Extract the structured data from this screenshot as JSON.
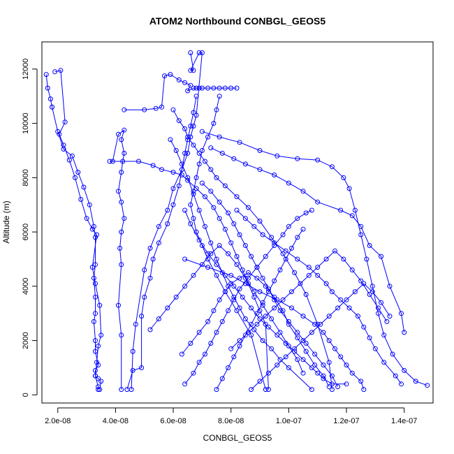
{
  "chart_data": {
    "type": "scatter",
    "title": "ATOM2 Northbound CONBGL_GEOS5",
    "xlabel": "CONBGL_GEOS5",
    "ylabel": "Altitude (m)",
    "xlim": [
      1.45e-08,
      1.5e-07
    ],
    "ylim": [
      -300,
      13000
    ],
    "x_ticks": [
      2e-08,
      4e-08,
      6e-08,
      8e-08,
      1e-07,
      1.2e-07,
      1.4e-07
    ],
    "x_tick_labels": [
      "2.0e-08",
      "4.0e-08",
      "6.0e-08",
      "8.0e-08",
      "1.0e-07",
      "1.2e-07",
      "1.4e-07"
    ],
    "y_ticks": [
      0,
      2000,
      4000,
      6000,
      8000,
      10000,
      12000
    ],
    "y_tick_labels": [
      "0",
      "2000",
      "4000",
      "6000",
      "8000",
      "10000",
      "12000"
    ],
    "marker": "open-circle",
    "connect_points": true,
    "color": "#0000ff",
    "series": [
      {
        "x": [
          1.6e-08,
          1.65e-08,
          1.75e-08,
          1.8e-08,
          1.8e-08,
          2e-08,
          2.2e-08,
          2.5e-08,
          2.7e-08,
          2.9e-08,
          3.1e-08,
          3.25e-08,
          3.3e-08,
          3.3e-08,
          3.25e-08,
          3.3e-08,
          3.3e-08,
          3.25e-08,
          3.3e-08,
          3.3e-08,
          3.4e-08,
          3.3e-08,
          3.3e-08,
          3.4e-08,
          3.4e-08
        ],
        "y": [
          11800,
          11300,
          10900,
          10600,
          10600,
          9700,
          9050,
          8800,
          8200,
          7650,
          7000,
          6200,
          5800,
          4800,
          4300,
          3600,
          3000,
          2700,
          2000,
          1600,
          1100,
          900,
          700,
          300,
          200
        ]
      },
      {
        "x": [
          1.9e-08,
          2.1e-08,
          2.25e-08,
          2.05e-08,
          2.2e-08,
          2.4e-08,
          2.6e-08,
          2.8e-08,
          3e-08,
          3.2e-08,
          3.35e-08,
          3.2e-08,
          3.3e-08,
          3.45e-08,
          3.5e-08,
          3.4e-08,
          3.35e-08,
          3.3e-08,
          3.4e-08,
          3.5e-08,
          3.45e-08
        ],
        "y": [
          11900,
          11950,
          10050,
          9600,
          9200,
          8650,
          8000,
          7200,
          6500,
          6100,
          5900,
          4700,
          4100,
          3300,
          2200,
          1800,
          1200,
          700,
          600,
          500,
          200
        ]
      },
      {
        "x": [
          3.9e-08,
          4.1e-08,
          4.3e-08,
          4.2e-08,
          4.3e-08,
          4.25e-08,
          4.2e-08,
          4.1e-08,
          4.2e-08,
          4.3e-08,
          4.2e-08,
          4.15e-08,
          4.2e-08,
          4.1e-08,
          4.2e-08,
          4.2e-08
        ],
        "y": [
          8600,
          9600,
          9750,
          9400,
          8900,
          8600,
          8200,
          7500,
          7100,
          6500,
          6000,
          5400,
          4800,
          3300,
          2200,
          200
        ]
      },
      {
        "x": [
          4.3e-08,
          5e-08,
          5.4e-08,
          5.6e-08,
          5.7e-08,
          5.9e-08,
          6.2e-08,
          6.4e-08,
          6.6e-08,
          6.5e-08,
          6.7e-08,
          6.9e-08,
          7e-08,
          6.8e-08,
          7.2e-08,
          7.4e-08,
          7.6e-08,
          7.8e-08,
          8e-08,
          8.2e-08
        ],
        "y": [
          10500,
          10500,
          10550,
          10600,
          11750,
          11800,
          11600,
          11500,
          11400,
          11200,
          11300,
          11300,
          11300,
          11300,
          11300,
          11300,
          11300,
          11300,
          11300,
          11300
        ]
      },
      {
        "x": [
          6.6e-08,
          6.7e-08,
          6.6e-08,
          6.9e-08,
          7e-08,
          6.8e-08,
          6.7e-08,
          6.6e-08,
          6.5e-08,
          6.3e-08,
          6e-08,
          5.8e-08,
          5.5e-08,
          5.2e-08,
          5e-08,
          4.7e-08,
          4.6e-08,
          4.55e-08
        ],
        "y": [
          12600,
          11950,
          11950,
          12600,
          12600,
          10300,
          9900,
          9500,
          8900,
          8300,
          7600,
          6800,
          6200,
          5400,
          4600,
          2600,
          1600,
          200
        ]
      },
      {
        "x": [
          3.8e-08,
          4.8e-08,
          5.3e-08,
          5.6e-08,
          6e-08,
          6.3e-08,
          6.5e-08,
          6.8e-08,
          7.1e-08,
          7.4e-08,
          7.6e-08,
          7.8e-08,
          8e-08,
          8.2e-08,
          8.4e-08,
          8.6e-08,
          8.8e-08,
          9e-08,
          9.2e-08,
          9.3e-08
        ],
        "y": [
          8600,
          8600,
          8450,
          8300,
          8200,
          8100,
          7900,
          7600,
          7300,
          6900,
          6500,
          6100,
          5600,
          5100,
          4600,
          4100,
          3600,
          3100,
          2600,
          200
        ]
      },
      {
        "x": [
          6e-08,
          6.2e-08,
          6.4e-08,
          6.5e-08,
          6.7e-08,
          6.9e-08,
          7.1e-08,
          7.3e-08,
          7.5e-08,
          7.8e-08,
          8.2e-08,
          8.6e-08,
          9e-08,
          9.4e-08,
          9.8e-08,
          1.02e-07,
          1.06e-07,
          1.1e-07,
          1.14e-07,
          1.15e-07
        ],
        "y": [
          10500,
          10100,
          9800,
          9500,
          9200,
          8900,
          8600,
          8300,
          8000,
          7700,
          7300,
          6900,
          6400,
          5800,
          5200,
          4500,
          3700,
          2600,
          1200,
          200
        ]
      },
      {
        "x": [
          7.3e-08,
          7.7e-08,
          8.1e-08,
          8.5e-08,
          9e-08,
          9.5e-08,
          1e-07,
          1.05e-07,
          1.1e-07,
          1.18e-07,
          1.22e-07,
          1.25e-07,
          1.28e-07,
          1.32e-07,
          1.35e-07,
          1.39e-07,
          1.4e-07
        ],
        "y": [
          9100,
          8900,
          8700,
          8500,
          8300,
          8100,
          7800,
          7500,
          7100,
          6800,
          6600,
          6200,
          5500,
          5100,
          4000,
          3000,
          2300
        ]
      },
      {
        "x": [
          7e-08,
          7.6e-08,
          8.3e-08,
          9e-08,
          9.6e-08,
          1.03e-07,
          1.1e-07,
          1.15e-07,
          1.19e-07,
          1.21e-07,
          1.23e-07,
          1.25e-07,
          1.27e-07,
          1.29e-07,
          1.31e-07,
          1.33e-07,
          1.36e-07,
          1.4e-07,
          1.44e-07,
          1.48e-07
        ],
        "y": [
          9700,
          9500,
          9300,
          9000,
          8800,
          8700,
          8650,
          8400,
          8000,
          7600,
          6800,
          5900,
          5000,
          4000,
          3000,
          2200,
          1500,
          900,
          500,
          350
        ]
      },
      {
        "x": [
          6.4e-08,
          6.6e-08,
          6.9e-08,
          7.2e-08,
          7.5e-08,
          7.8e-08,
          8.1e-08,
          8.4e-08,
          8.7e-08,
          9e-08,
          9.3e-08,
          9.6e-08,
          9.9e-08,
          1.02e-07,
          1.05e-07,
          1.08e-07,
          1.1e-07,
          1.12e-07,
          1.15e-07,
          1.2e-07
        ],
        "y": [
          6800,
          6300,
          5700,
          5200,
          4800,
          4400,
          4000,
          3600,
          3200,
          2800,
          2500,
          2200,
          1900,
          1600,
          1300,
          1000,
          800,
          600,
          400,
          400
        ]
      },
      {
        "x": [
          5.9e-08,
          6.1e-08,
          6.3e-08,
          6.5e-08,
          6.7e-08,
          6.9e-08,
          7.1e-08,
          7.3e-08,
          7.5e-08,
          7.7e-08,
          7.9e-08,
          8.1e-08,
          8.3e-08,
          8.5e-08,
          8.8e-08,
          9.1e-08,
          9.4e-08,
          9.7e-08,
          1e-07,
          1.08e-07
        ],
        "y": [
          9400,
          9000,
          8500,
          8000,
          7400,
          6800,
          6200,
          5600,
          5000,
          4500,
          4000,
          3600,
          3200,
          2800,
          2400,
          2000,
          1700,
          1300,
          1000,
          200
        ]
      },
      {
        "x": [
          6.8e-08,
          6.7e-08,
          6.6e-08,
          6.5e-08,
          6.4e-08,
          6.3e-08,
          6.2e-08,
          6e-08,
          5.8e-08,
          5.5e-08,
          5.3e-08,
          5.2e-08,
          5e-08,
          4.9e-08,
          4.9e-08,
          4.6e-08,
          4.4e-08
        ],
        "y": [
          11000,
          10400,
          9900,
          9400,
          8900,
          8300,
          7700,
          7000,
          6300,
          5600,
          5000,
          4300,
          3600,
          2900,
          1000,
          900,
          200
        ]
      },
      {
        "x": [
          7.6e-08,
          7.5e-08,
          7.4e-08,
          7.2e-08,
          7e-08,
          6.9e-08,
          6.8e-08,
          6.7e-08,
          6.6e-08,
          6.7e-08,
          6.8e-08,
          7e-08,
          7.2e-08,
          7.5e-08,
          7.8e-08,
          8.2e-08,
          8.7e-08,
          9.2e-08
        ],
        "y": [
          11000,
          10500,
          10000,
          9500,
          9000,
          8500,
          8000,
          7500,
          7000,
          6500,
          6000,
          5500,
          5000,
          4400,
          3800,
          3100,
          2200,
          200
        ]
      },
      {
        "x": [
          6.4e-08,
          7.2e-08,
          8e-08,
          8.5e-08,
          9e-08,
          9.6e-08,
          1.01e-07,
          1.05e-07,
          1.09e-07,
          1.12e-07,
          1.14e-07,
          1.16e-07,
          1.18e-07,
          1.2e-07,
          1.22e-07,
          1.25e-07,
          1.26e-07
        ],
        "y": [
          5000,
          4700,
          4400,
          4100,
          3800,
          3500,
          3200,
          2900,
          2600,
          2300,
          2000,
          1700,
          1400,
          1100,
          800,
          500,
          200
        ]
      },
      {
        "x": [
          8.2e-08,
          8.5e-08,
          8.8e-08,
          9.1e-08,
          9.5e-08,
          9.9e-08,
          1.03e-07,
          1.07e-07,
          1.1e-07,
          1.13e-07,
          1.15e-07,
          1.18e-07,
          1.21e-07,
          1.24e-07,
          1.26e-07,
          1.28e-07,
          1.3e-07,
          1.33e-07,
          1.37e-07,
          1.39e-07
        ],
        "y": [
          6800,
          6500,
          6200,
          5900,
          5600,
          5300,
          5000,
          4700,
          4400,
          4100,
          3800,
          3500,
          3200,
          2900,
          2500,
          2100,
          1700,
          1200,
          700,
          400
        ]
      },
      {
        "x": [
          6.3e-08,
          6.6e-08,
          6.9e-08,
          7.2e-08,
          7.4e-08,
          7.6e-08,
          7.8e-08,
          8e-08,
          8.3e-08,
          8.6e-08,
          8.9e-08,
          9.2e-08,
          9.5e-08,
          9.8e-08,
          1e-07,
          1.03e-07,
          1.06e-07,
          1.09e-07,
          1.12e-07,
          1.14e-07
        ],
        "y": [
          1500,
          1900,
          2300,
          2700,
          3100,
          3500,
          3800,
          4100,
          4300,
          4500,
          4300,
          4000,
          3600,
          3100,
          2600,
          2100,
          1600,
          1100,
          700,
          300
        ]
      },
      {
        "x": [
          6.4e-08,
          6.7e-08,
          6.9e-08,
          7.1e-08,
          7.3e-08,
          7.5e-08,
          7.7e-08,
          7.9e-08,
          8.1e-08,
          8.3e-08,
          8.6e-08,
          8.9e-08,
          9.2e-08,
          9.5e-08,
          9.8e-08,
          1e-07,
          1.03e-07,
          1.06e-07,
          1.08e-07
        ],
        "y": [
          400,
          800,
          1200,
          1500,
          1900,
          2300,
          2700,
          3100,
          3500,
          3900,
          4300,
          4700,
          5100,
          5500,
          5900,
          6200,
          6500,
          6700,
          6800
        ]
      },
      {
        "x": [
          7e-08,
          7.3e-08,
          7.6e-08,
          7.9e-08,
          8.1e-08,
          8.3e-08,
          8.5e-08,
          8.7e-08,
          8.9e-08,
          9.1e-08,
          9.3e-08,
          9.5e-08,
          9.7e-08,
          1e-07,
          1.03e-07,
          1.06e-07,
          1.09e-07,
          1.12e-07,
          1.15e-07,
          1.17e-07
        ],
        "y": [
          7800,
          7500,
          7100,
          6700,
          6300,
          5900,
          5500,
          5100,
          4700,
          4300,
          3900,
          3500,
          3100,
          2700,
          2300,
          1900,
          1500,
          1100,
          700,
          300
        ]
      },
      {
        "x": [
          5.2e-08,
          5.5e-08,
          5.8e-08,
          6.1e-08,
          6.4e-08,
          6.7e-08,
          7e-08,
          7.3e-08,
          7.6e-08,
          7.9e-08,
          8.2e-08,
          8.5e-08,
          8.8e-08,
          9.1e-08,
          9.4e-08,
          9.7e-08,
          1e-07,
          1.03e-07,
          1.05e-07
        ],
        "y": [
          2400,
          2800,
          3200,
          3600,
          4000,
          4400,
          4800,
          5200,
          5500,
          5200,
          4800,
          4300,
          3800,
          3300,
          2800,
          2300,
          1800,
          1300,
          800
        ]
      },
      {
        "x": [
          8e-08,
          8.3e-08,
          8.6e-08,
          8.9e-08,
          9.2e-08,
          9.5e-08,
          9.8e-08,
          1.01e-07,
          1.04e-07,
          1.07e-07,
          1.1e-07,
          1.13e-07,
          1.16e-07,
          1.19e-07,
          1.22e-07,
          1.25e-07,
          1.28e-07,
          1.31e-07,
          1.34e-07
        ],
        "y": [
          1700,
          2000,
          2300,
          2600,
          2900,
          3200,
          3500,
          3800,
          4100,
          4400,
          4700,
          5000,
          5300,
          5000,
          4600,
          4200,
          3700,
          3200,
          2700
        ]
      },
      {
        "x": [
          7.5e-08,
          7.7e-08,
          7.9e-08,
          8.1e-08,
          8.3e-08,
          8.5e-08,
          8.7e-08,
          8.9e-08,
          9.1e-08,
          9.3e-08,
          9.5e-08,
          9.7e-08,
          9.9e-08,
          1.01e-07,
          1.03e-07,
          1.05e-07
        ],
        "y": [
          200,
          600,
          1000,
          1400,
          1800,
          2200,
          2600,
          3000,
          3400,
          3800,
          4200,
          4600,
          5000,
          5400,
          5800,
          6100
        ]
      },
      {
        "x": [
          8.7e-08,
          9e-08,
          9.3e-08,
          9.6e-08,
          9.9e-08,
          1.02e-07,
          1.05e-07,
          1.08e-07,
          1.11e-07,
          1.14e-07,
          1.17e-07,
          1.2e-07,
          1.23e-07,
          1.26e-07,
          1.29e-07,
          1.32e-07,
          1.35e-07
        ],
        "y": [
          200,
          500,
          800,
          1100,
          1400,
          1700,
          2000,
          2300,
          2600,
          2900,
          3200,
          3500,
          3800,
          4100,
          3800,
          3400,
          2900
        ]
      }
    ]
  }
}
